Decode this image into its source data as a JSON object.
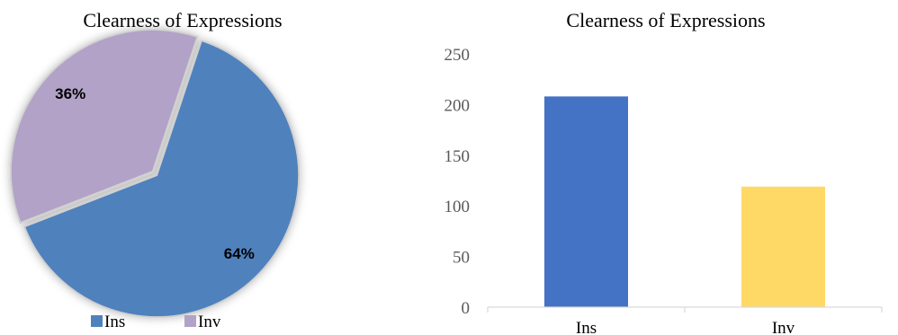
{
  "chart_data": [
    {
      "type": "pie",
      "title": "Clearness of Expressions",
      "categories": [
        "Ins",
        "Inv"
      ],
      "values": [
        64,
        36
      ],
      "labels": [
        "64%",
        "36%"
      ],
      "colors": [
        "#4f81bd",
        "#b2a2c7"
      ],
      "legend_position": "bottom"
    },
    {
      "type": "bar",
      "title": "Clearness of Expressions",
      "categories": [
        "Ins",
        "Inv"
      ],
      "values": [
        208,
        119
      ],
      "colors": [
        "#4472c4",
        "#ffd966"
      ],
      "ylim": [
        0,
        250
      ],
      "yticks": [
        "0",
        "50",
        "100",
        "150",
        "200",
        "250"
      ],
      "grid": false
    }
  ]
}
